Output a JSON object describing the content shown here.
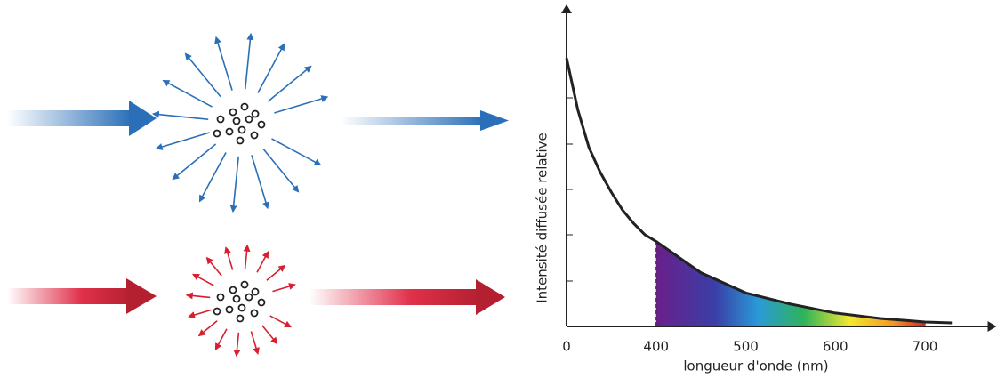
{
  "chart_data": {
    "type": "line",
    "xlabel": "longueur d'onde (nm)",
    "ylabel": "Intensité diffusée relative",
    "x": [
      0,
      50,
      100,
      150,
      200,
      250,
      300,
      350,
      400,
      450,
      500,
      550,
      600,
      650,
      700,
      730
    ],
    "values": [
      6.0,
      4.85,
      4.0,
      3.45,
      3.0,
      2.6,
      2.3,
      2.05,
      1.9,
      1.2,
      0.75,
      0.5,
      0.3,
      0.18,
      0.1,
      0.08
    ],
    "xlim": [
      0,
      770
    ],
    "ylim": [
      0,
      7
    ],
    "xticks": [
      0,
      400,
      500,
      600,
      700
    ],
    "highlight": [
      400,
      700
    ],
    "color": "#222222"
  }
}
